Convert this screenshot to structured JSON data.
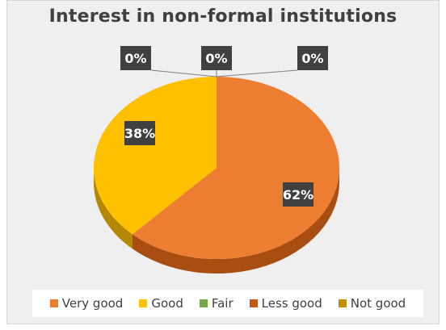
{
  "chart_data": {
    "type": "pie",
    "title": "Interest in non-formal institutions",
    "categories": [
      "Very good",
      "Good",
      "Fair",
      "Less good",
      "Not good"
    ],
    "values": [
      62,
      38,
      0,
      0,
      0
    ],
    "value_unit": "%",
    "data_labels": [
      "62%",
      "38%",
      "0%",
      "0%",
      "0%"
    ],
    "colors": {
      "Very good": "#ED7D31",
      "Good": "#FFC000",
      "Fair": "#70AD47",
      "Less good": "#C55A11",
      "Not good": "#BF9000"
    },
    "side_colors": {
      "Very good": "#A94E12",
      "Good": "#B38700"
    },
    "style": "3d-pie",
    "legend_position": "bottom"
  }
}
